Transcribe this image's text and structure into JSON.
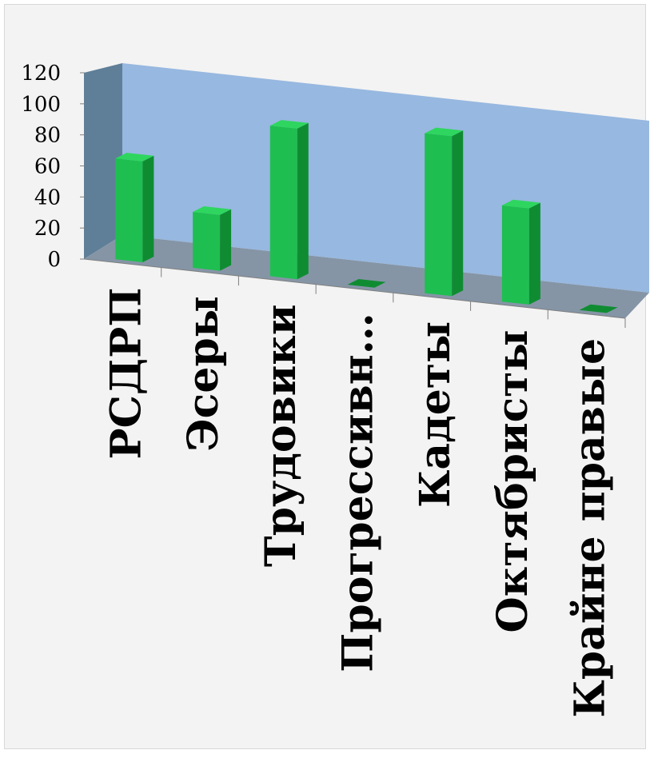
{
  "chart_data": {
    "type": "bar",
    "title": "",
    "xlabel": "",
    "ylabel": "",
    "categories": [
      "РСДРП",
      "Эсеры",
      "Трудовики",
      "Прогрессивн…",
      "Кадеты",
      "Октябристы",
      "Крайне правые"
    ],
    "values": [
      65,
      36,
      97,
      0,
      103,
      62,
      0
    ],
    "ylim": [
      0,
      120
    ],
    "yticks": [
      "0",
      "20",
      "40",
      "60",
      "80",
      "100",
      "120"
    ],
    "grid": false,
    "legend": "none",
    "style": "3d-column",
    "colors": {
      "bar_front": "#1fbe50",
      "bar_side": "#0f8c32",
      "bar_top": "#2ed65f",
      "back_wall": "#97b8e0",
      "side_wall": "#5f7e98",
      "floor": "#8595a6",
      "axis": "#7f7f7f",
      "text": "#000000"
    }
  }
}
